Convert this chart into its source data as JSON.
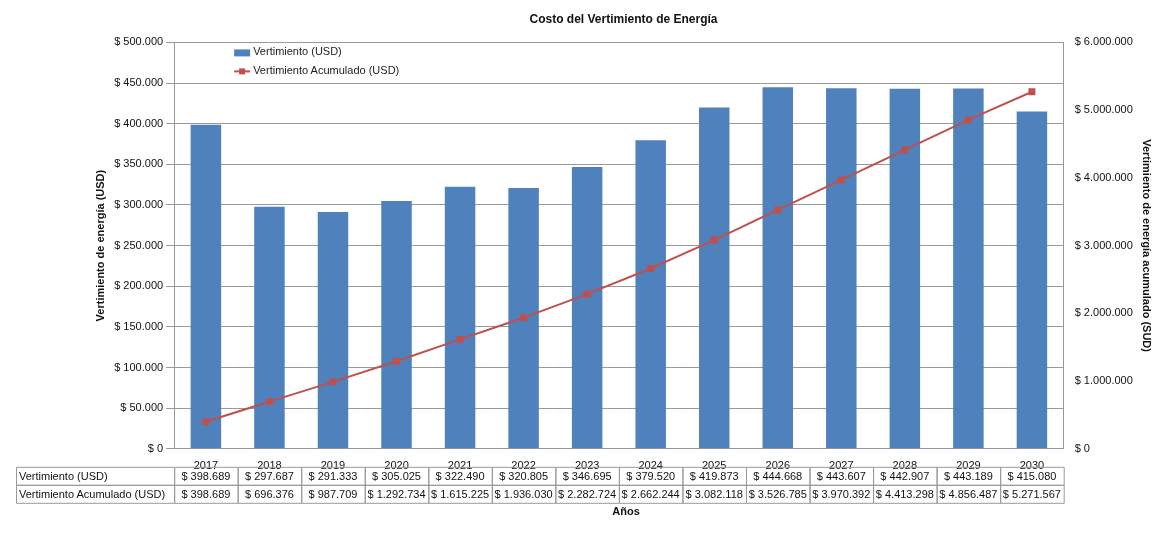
{
  "chart_data": {
    "type": "bar",
    "title": "Costo del Vertimiento de Energía",
    "xlabel": "Años",
    "ylabel": "Vertimiento de energía (USD)",
    "y2label": "Vertimiento de energía acumulado (SUD)",
    "categories": [
      "2017",
      "2018",
      "2019",
      "2020",
      "2021",
      "2022",
      "2023",
      "2024",
      "2025",
      "2026",
      "2027",
      "2028",
      "2029",
      "2030"
    ],
    "series": [
      {
        "name": "Vertimiento (USD)",
        "color": "#4f81bd",
        "values": [
          398689,
          297687,
          291333,
          305025,
          322490,
          320805,
          346695,
          379520,
          419873,
          444668,
          443607,
          442907,
          443189,
          415080
        ],
        "value_labels": [
          "$ 398.689",
          "$ 297.687",
          "$ 291.333",
          "$ 305.025",
          "$ 322.490",
          "$ 320.805",
          "$ 346.695",
          "$ 379.520",
          "$ 419.873",
          "$ 444.668",
          "$ 443.607",
          "$ 442.907",
          "$ 443.189",
          "$ 415.080"
        ]
      },
      {
        "name": "Vertimiento Acumulado (USD)",
        "type": "line",
        "axis": "y2",
        "color": "#c0504d",
        "marker": "square",
        "values": [
          398689,
          696376,
          987709,
          1292734,
          1615225,
          1936030,
          2282724,
          2662244,
          3082118,
          3526785,
          3970392,
          4413298,
          4856487,
          5271567
        ],
        "value_labels": [
          "$ 398.689",
          "$ 696.376",
          "$ 987.709",
          "$ 1.292.734",
          "$ 1.615.225",
          "$ 1.936.030",
          "$ 2.282.724",
          "$ 2.662.244",
          "$ 3.082.118",
          "$ 3.526.785",
          "$ 3.970.392",
          "$ 4.413.298",
          "$ 4.856.487",
          "$ 5.271.567"
        ]
      }
    ],
    "ylim": [
      0,
      500000
    ],
    "yticks": [
      {
        "value": 0,
        "label": "$ 0"
      },
      {
        "value": 50000,
        "label": "$ 50.000"
      },
      {
        "value": 100000,
        "label": "$ 100.000"
      },
      {
        "value": 150000,
        "label": "$ 150.000"
      },
      {
        "value": 200000,
        "label": "$ 200.000"
      },
      {
        "value": 250000,
        "label": "$ 250.000"
      },
      {
        "value": 300000,
        "label": "$ 300.000"
      },
      {
        "value": 350000,
        "label": "$ 350.000"
      },
      {
        "value": 400000,
        "label": "$ 400.000"
      },
      {
        "value": 450000,
        "label": "$ 450.000"
      },
      {
        "value": 500000,
        "label": "$ 500.000"
      }
    ],
    "y2lim": [
      0,
      6000000
    ],
    "y2ticks": [
      {
        "value": 0,
        "label": "$ 0"
      },
      {
        "value": 1000000,
        "label": "$ 1.000.000"
      },
      {
        "value": 2000000,
        "label": "$ 2.000.000"
      },
      {
        "value": 3000000,
        "label": "$ 3.000.000"
      },
      {
        "value": 4000000,
        "label": "$ 4.000.000"
      },
      {
        "value": 5000000,
        "label": "$ 5.000.000"
      },
      {
        "value": 6000000,
        "label": "$ 6.000.000"
      }
    ],
    "grid": "y",
    "legend": "top left"
  }
}
